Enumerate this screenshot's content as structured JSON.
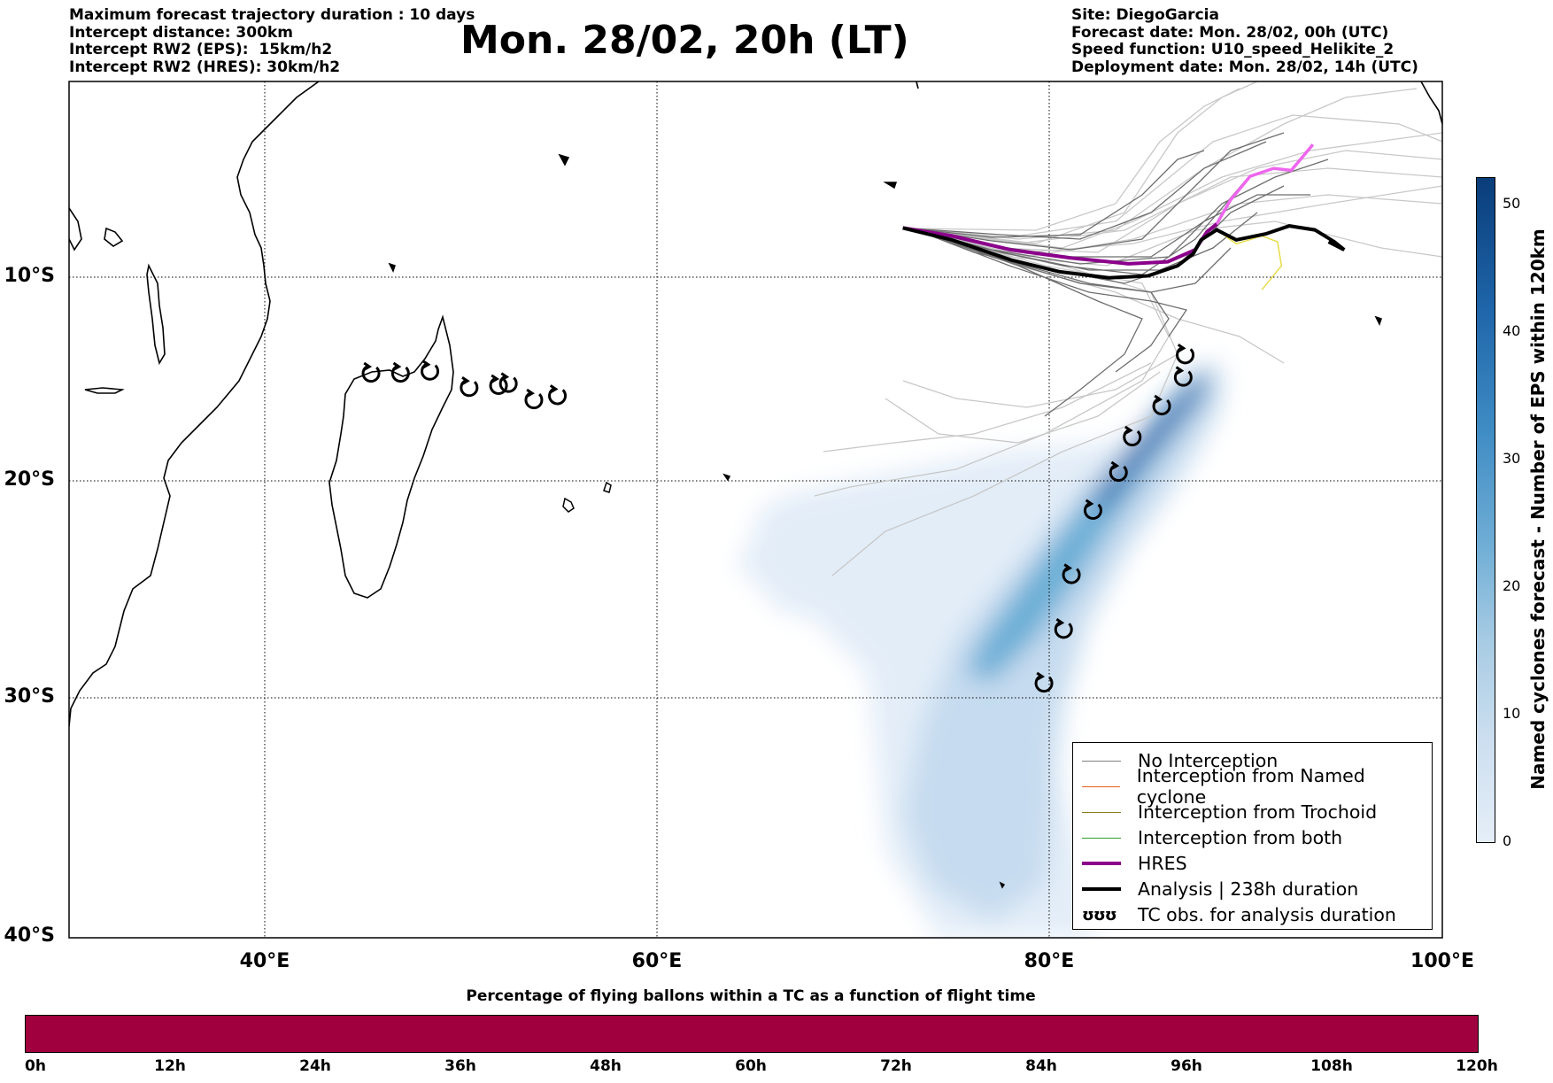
{
  "header_left": [
    "Maximum forecast trajectory duration : 10 days",
    "Intercept distance: 300km",
    "Intercept RW2 (EPS):  15km/h2",
    "Intercept RW2 (HRES): 30km/h2"
  ],
  "header_right": [
    "Site: DiegoGarcia",
    "Forecast date: Mon. 28/02, 00h (UTC)",
    "Speed function: U10_speed_Helikite_2",
    "Deployment date: Mon. 28/02, 14h (UTC)"
  ],
  "title": "Mon. 28/02, 20h (LT)",
  "map": {
    "lat_labels": [
      "10°S",
      "20°S",
      "30°S",
      "40°S"
    ],
    "lon_labels": [
      "40°E",
      "60°E",
      "80°E",
      "100°E"
    ],
    "extent": {
      "lon_min": 30,
      "lon_max": 100,
      "lat_min": -40,
      "lat_max": -0.3
    },
    "gridlines": true,
    "legend_position": "bottom-right",
    "legend": [
      {
        "label": "No Interception",
        "color": "#808080",
        "style": "thin"
      },
      {
        "label": "Interception from Named cyclone",
        "color": "#e8601c",
        "style": "thin"
      },
      {
        "label": "Interception from Trochoid",
        "color": "#8b7d1a",
        "style": "thin"
      },
      {
        "label": "Interception from both",
        "color": "#2ca02c",
        "style": "thin"
      },
      {
        "label": "HRES",
        "color": "#8b008b",
        "style": "thick"
      },
      {
        "label": "Analysis | 238h duration",
        "color": "#000000",
        "style": "thick"
      },
      {
        "label": "TC obs. for analysis duration",
        "symbol": "ʊʊʊ"
      }
    ],
    "tc_observations": [
      [
        45.4,
        -14.9
      ],
      [
        46.9,
        -14.9
      ],
      [
        48.4,
        -14.8
      ],
      [
        50.4,
        -15.6
      ],
      [
        51.9,
        -15.5
      ],
      [
        52.4,
        -15.4
      ],
      [
        53.7,
        -16.2
      ],
      [
        54.9,
        -16.0
      ],
      [
        86.9,
        -14.0
      ],
      [
        86.8,
        -15.1
      ],
      [
        85.7,
        -16.5
      ],
      [
        84.2,
        -18.0
      ],
      [
        83.5,
        -19.7
      ],
      [
        82.2,
        -21.5
      ],
      [
        81.1,
        -24.5
      ],
      [
        80.7,
        -27.0
      ],
      [
        79.7,
        -29.4
      ]
    ],
    "analysis_track": [
      [
        72.5,
        -7.7
      ],
      [
        75,
        -8.3
      ],
      [
        78,
        -9.3
      ],
      [
        80.5,
        -9.9
      ],
      [
        83,
        -10.2
      ],
      [
        85,
        -10.1
      ],
      [
        86.5,
        -9.6
      ],
      [
        87.3,
        -9.0
      ],
      [
        87.7,
        -8.3
      ],
      [
        88.5,
        -7.8
      ],
      [
        89.5,
        -8.3
      ],
      [
        91,
        -8.0
      ],
      [
        92.2,
        -7.6
      ],
      [
        93.5,
        -7.8
      ],
      [
        94.5,
        -8.4
      ],
      [
        95,
        -8.8
      ],
      [
        94.2,
        -8.4
      ]
    ],
    "hres_track": [
      [
        72.5,
        -7.7
      ],
      [
        75,
        -8.1
      ],
      [
        78,
        -8.8
      ],
      [
        81,
        -9.2
      ],
      [
        84,
        -9.5
      ],
      [
        86,
        -9.4
      ],
      [
        87.4,
        -8.8
      ],
      [
        88.0,
        -7.9
      ],
      [
        88.5,
        -7.5
      ]
    ],
    "hres_extension": [
      [
        88.5,
        -7.5
      ],
      [
        89.2,
        -6.3
      ],
      [
        90.2,
        -5.1
      ],
      [
        91.4,
        -4.7
      ],
      [
        92.3,
        -4.8
      ],
      [
        93.4,
        -3.5
      ]
    ],
    "yellow_track": [
      [
        88.5,
        -7.8
      ],
      [
        89.5,
        -8.5
      ],
      [
        90.8,
        -8.1
      ],
      [
        91.6,
        -8.4
      ],
      [
        91.8,
        -9.6
      ],
      [
        90.8,
        -10.8
      ]
    ]
  },
  "colorbar": {
    "label": "Named cyclones forecast - Number of EPS within 120km",
    "ticks": [
      "0",
      "10",
      "20",
      "30",
      "40",
      "50"
    ],
    "min": 0,
    "max": 52,
    "colors": [
      "#e5eef8",
      "#0a3d7a"
    ]
  },
  "progress_bar": {
    "title": "Percentage of flying ballons within a TC as a function of flight time",
    "ticks": [
      "0h",
      "12h",
      "24h",
      "36h",
      "48h",
      "60h",
      "72h",
      "84h",
      "96h",
      "108h",
      "120h"
    ],
    "fill_fraction": 1.0,
    "fill_color": "#a0003e"
  }
}
